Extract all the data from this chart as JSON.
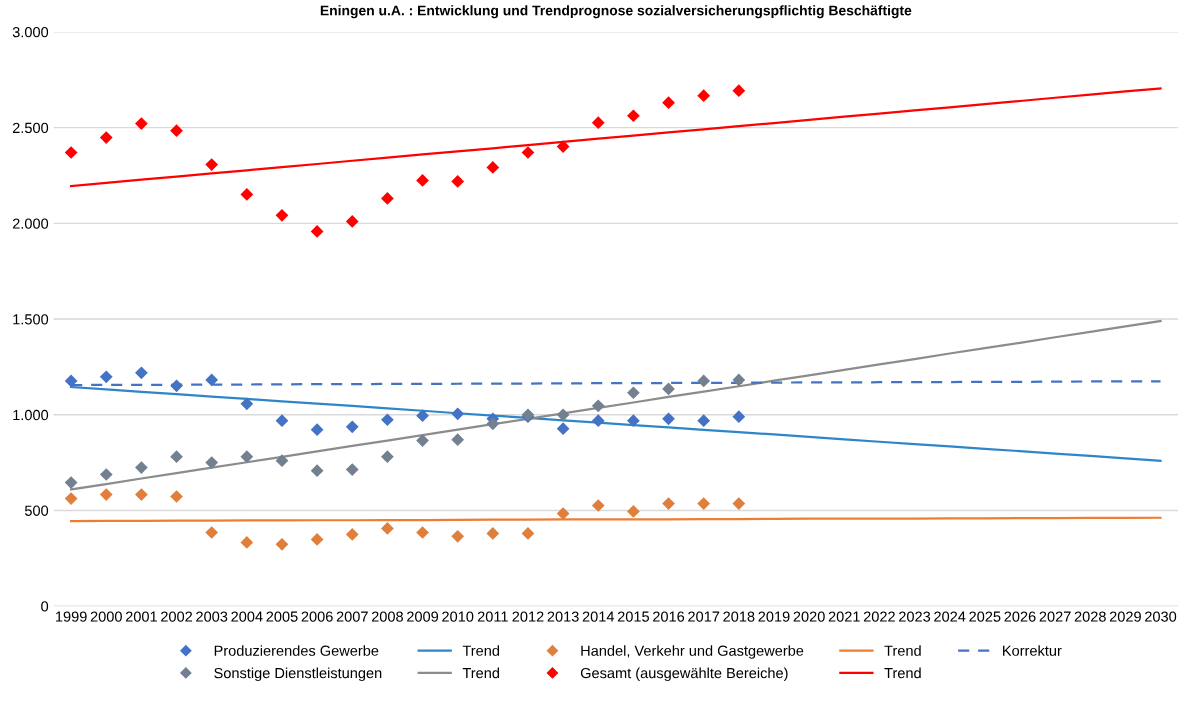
{
  "chart_data": {
    "type": "scatter",
    "title": "Eningen u.A. : Entwicklung und Trendprognose sozialversicherungspflichtig Beschäftigte",
    "x": [
      1999,
      2000,
      2001,
      2002,
      2003,
      2004,
      2005,
      2006,
      2007,
      2008,
      2009,
      2010,
      2011,
      2012,
      2013,
      2014,
      2015,
      2016,
      2017,
      2018,
      2019,
      2020,
      2021,
      2022,
      2023,
      2024,
      2025,
      2026,
      2027,
      2028,
      2029,
      2030
    ],
    "series": [
      {
        "name": "Produzierendes Gewerbe",
        "color": "#4472c4",
        "marker": "diamond",
        "values": [
          1177,
          1198,
          1219,
          1151,
          1182,
          1057,
          969,
          922,
          937,
          974,
          995,
          1005,
          979,
          990,
          927,
          969,
          969,
          979,
          969,
          990,
          null,
          null,
          null,
          null,
          null,
          null,
          null,
          null,
          null,
          null,
          null,
          null
        ]
      },
      {
        "name": "Sonstige Dienstleistungen",
        "color": "#72808f",
        "marker": "diamond",
        "values": [
          646,
          688,
          724,
          781,
          750,
          781,
          760,
          708,
          714,
          781,
          865,
          870,
          953,
          1000,
          1000,
          1047,
          1115,
          1135,
          1177,
          1182,
          null,
          null,
          null,
          null,
          null,
          null,
          null,
          null,
          null,
          null,
          null,
          null
        ]
      },
      {
        "name": "Trend",
        "type": "line",
        "color": "#2e86c8",
        "marker": "none",
        "values": [
          1145,
          1133,
          1120,
          1108,
          1095,
          1083,
          1070,
          1058,
          1046,
          1033,
          1021,
          1008,
          996,
          984,
          971,
          959,
          946,
          934,
          921,
          909,
          897,
          884,
          872,
          859,
          847,
          835,
          822,
          810,
          797,
          785,
          772,
          760
        ]
      },
      {
        "name": "Trend",
        "type": "line",
        "color": "#8c8c8c",
        "marker": "none",
        "values": [
          610,
          638,
          667,
          695,
          724,
          752,
          780,
          809,
          837,
          865,
          894,
          922,
          951,
          979,
          1007,
          1036,
          1064,
          1093,
          1121,
          1149,
          1178,
          1206,
          1235,
          1263,
          1291,
          1320,
          1348,
          1376,
          1405,
          1433,
          1462,
          1490
        ]
      },
      {
        "name": "Handel, Verkehr und Gastgewerbe",
        "color": "#e07f3c",
        "marker": "diamond",
        "values": [
          562,
          583,
          583,
          573,
          385,
          333,
          323,
          349,
          375,
          406,
          385,
          365,
          380,
          380,
          484,
          526,
          495,
          536,
          536,
          536,
          null,
          null,
          null,
          null,
          null,
          null,
          null,
          null,
          null,
          null,
          null,
          null
        ]
      },
      {
        "name": "Gesamt (ausgewählte Bereiche)",
        "color": "#ff0000",
        "marker": "diamond",
        "values": [
          2370,
          2448,
          2521,
          2484,
          2307,
          2151,
          2042,
          1958,
          2010,
          2130,
          2224,
          2219,
          2292,
          2370,
          2401,
          2526,
          2562,
          2630,
          2667,
          2693,
          null,
          null,
          null,
          null,
          null,
          null,
          null,
          null,
          null,
          null,
          null,
          null
        ]
      },
      {
        "name": "Trend",
        "type": "line",
        "color": "#ed7d31",
        "marker": "none",
        "values": [
          445,
          446,
          446,
          447,
          447,
          448,
          448,
          449,
          449,
          450,
          450,
          451,
          452,
          452,
          453,
          453,
          454,
          454,
          455,
          455,
          456,
          457,
          457,
          458,
          458,
          459,
          459,
          460,
          460,
          461,
          461,
          462
        ]
      },
      {
        "name": "Trend",
        "type": "line",
        "color": "#ff0000",
        "marker": "none",
        "values": [
          2195,
          2211,
          2228,
          2244,
          2261,
          2277,
          2294,
          2310,
          2327,
          2343,
          2360,
          2376,
          2392,
          2409,
          2425,
          2442,
          2458,
          2475,
          2491,
          2508,
          2524,
          2540,
          2557,
          2573,
          2590,
          2606,
          2623,
          2639,
          2656,
          2672,
          2689,
          2705
        ]
      },
      {
        "name": "Korrektur",
        "type": "line",
        "color": "#4472c4",
        "marker": "none",
        "line_style": "dashed",
        "values": [
          1155,
          1156,
          1156,
          1157,
          1158,
          1158,
          1159,
          1160,
          1160,
          1161,
          1161,
          1162,
          1163,
          1163,
          1164,
          1165,
          1165,
          1166,
          1167,
          1167,
          1168,
          1169,
          1169,
          1170,
          1170,
          1171,
          1172,
          1172,
          1173,
          1174,
          1174,
          1175
        ]
      }
    ],
    "xlim": [
      1998.5,
      2030.5
    ],
    "xticks": [
      1999,
      2000,
      2001,
      2002,
      2003,
      2004,
      2005,
      2006,
      2007,
      2008,
      2009,
      2010,
      2011,
      2012,
      2013,
      2014,
      2015,
      2016,
      2017,
      2018,
      2019,
      2020,
      2021,
      2022,
      2023,
      2024,
      2025,
      2026,
      2027,
      2028,
      2029,
      2030
    ],
    "ylim": [
      0,
      3000
    ],
    "yticks": [
      {
        "value": 0,
        "label": "0"
      },
      {
        "value": 500,
        "label": "500"
      },
      {
        "value": 1000,
        "label": "1.000"
      },
      {
        "value": 1500,
        "label": "1.500"
      },
      {
        "value": 2000,
        "label": "2.000"
      },
      {
        "value": 2500,
        "label": "2.500"
      },
      {
        "value": 3000,
        "label": "3.000"
      }
    ],
    "grid": "y",
    "legend": "bottom"
  }
}
